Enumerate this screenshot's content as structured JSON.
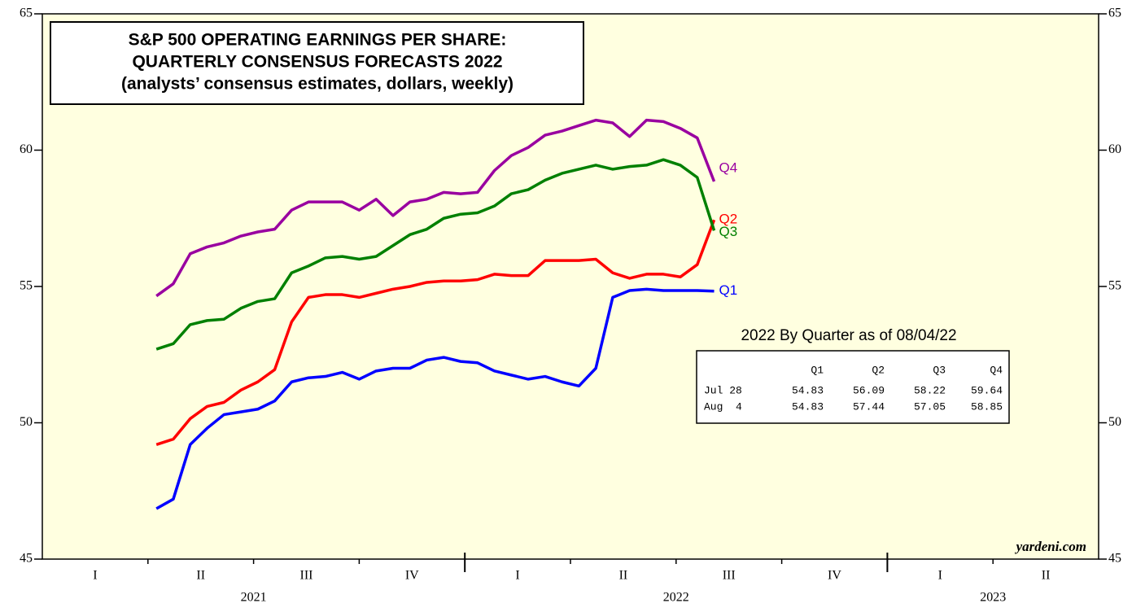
{
  "chart_data": {
    "type": "line",
    "title": [
      "S&P 500 OPERATING EARNINGS PER SHARE:",
      "QUARTERLY CONSENSUS FORECASTS 2022",
      "(analysts’ consensus estimates, dollars, weekly)"
    ],
    "source": "yardeni.com",
    "x": [
      2021.27,
      2021.31,
      2021.35,
      2021.39,
      2021.43,
      2021.47,
      2021.51,
      2021.55,
      2021.59,
      2021.63,
      2021.67,
      2021.71,
      2021.75,
      2021.79,
      2021.83,
      2021.87,
      2021.91,
      2021.95,
      2021.99,
      2022.03,
      2022.07,
      2022.11,
      2022.15,
      2022.19,
      2022.23,
      2022.27,
      2022.31,
      2022.35,
      2022.39,
      2022.43,
      2022.47,
      2022.51,
      2022.55,
      2022.59
    ],
    "series": [
      {
        "name": "Q1",
        "color": "#0000ff",
        "values": [
          46.85,
          47.2,
          49.2,
          49.8,
          50.3,
          50.4,
          50.5,
          50.8,
          51.5,
          51.65,
          51.7,
          51.85,
          51.6,
          51.9,
          52.0,
          52.0,
          52.3,
          52.4,
          52.25,
          52.2,
          51.9,
          51.75,
          51.6,
          51.7,
          51.5,
          51.35,
          52.0,
          54.6,
          54.85,
          54.9,
          54.85,
          54.85,
          54.85,
          54.83
        ]
      },
      {
        "name": "Q2",
        "color": "#ff0000",
        "values": [
          49.2,
          49.4,
          50.15,
          50.6,
          50.75,
          51.2,
          51.5,
          51.95,
          53.7,
          54.6,
          54.7,
          54.7,
          54.6,
          54.75,
          54.9,
          55.0,
          55.15,
          55.2,
          55.2,
          55.25,
          55.45,
          55.4,
          55.4,
          55.95,
          55.95,
          55.95,
          56.0,
          55.5,
          55.3,
          55.45,
          55.45,
          55.35,
          55.8,
          57.44
        ]
      },
      {
        "name": "Q3",
        "color": "#008000",
        "values": [
          52.7,
          52.9,
          53.6,
          53.75,
          53.8,
          54.2,
          54.45,
          54.55,
          55.5,
          55.75,
          56.05,
          56.1,
          56.0,
          56.1,
          56.5,
          56.9,
          57.1,
          57.5,
          57.65,
          57.7,
          57.95,
          58.4,
          58.55,
          58.9,
          59.15,
          59.3,
          59.45,
          59.3,
          59.4,
          59.45,
          59.65,
          59.45,
          59.0,
          57.05
        ]
      },
      {
        "name": "Q4",
        "color": "#9900a0",
        "values": [
          54.65,
          55.1,
          56.2,
          56.45,
          56.6,
          56.85,
          57.0,
          57.1,
          57.8,
          58.1,
          58.1,
          58.1,
          57.8,
          58.2,
          57.6,
          58.1,
          58.2,
          58.45,
          58.4,
          58.45,
          59.25,
          59.8,
          60.1,
          60.55,
          60.7,
          60.9,
          61.1,
          61.0,
          60.5,
          61.1,
          61.05,
          60.8,
          60.45,
          58.85
        ]
      }
    ],
    "xlim": [
      2021,
      2023.5
    ],
    "ylim": [
      45,
      65
    ],
    "yticks": [
      45,
      50,
      55,
      60,
      65
    ],
    "quarter_ticks": [
      2021.25,
      2021.5,
      2021.75,
      2022.25,
      2022.5,
      2022.75,
      2023.25
    ],
    "year_ticks": [
      2022,
      2023
    ],
    "quarter_labels": [
      {
        "value": 2021.125,
        "label": "I"
      },
      {
        "value": 2021.375,
        "label": "II"
      },
      {
        "value": 2021.625,
        "label": "III"
      },
      {
        "value": 2021.875,
        "label": "IV"
      },
      {
        "value": 2022.125,
        "label": "I"
      },
      {
        "value": 2022.375,
        "label": "II"
      },
      {
        "value": 2022.625,
        "label": "III"
      },
      {
        "value": 2022.875,
        "label": "IV"
      },
      {
        "value": 2023.125,
        "label": "I"
      },
      {
        "value": 2023.375,
        "label": "II"
      }
    ],
    "year_labels": [
      {
        "value": 2021.5,
        "label": "2021"
      },
      {
        "value": 2022.5,
        "label": "2022"
      },
      {
        "value": 2023.25,
        "label": "2023"
      }
    ],
    "background": "#ffffe0",
    "table": {
      "title": "2022 By Quarter as of 08/04/22",
      "header": [
        "Q1",
        "Q2",
        "Q3",
        "Q4"
      ],
      "rows": [
        [
          "Jul 28",
          54.83,
          56.09,
          58.22,
          59.64
        ],
        [
          "Aug  4",
          54.83,
          57.44,
          57.05,
          58.85
        ]
      ]
    }
  }
}
